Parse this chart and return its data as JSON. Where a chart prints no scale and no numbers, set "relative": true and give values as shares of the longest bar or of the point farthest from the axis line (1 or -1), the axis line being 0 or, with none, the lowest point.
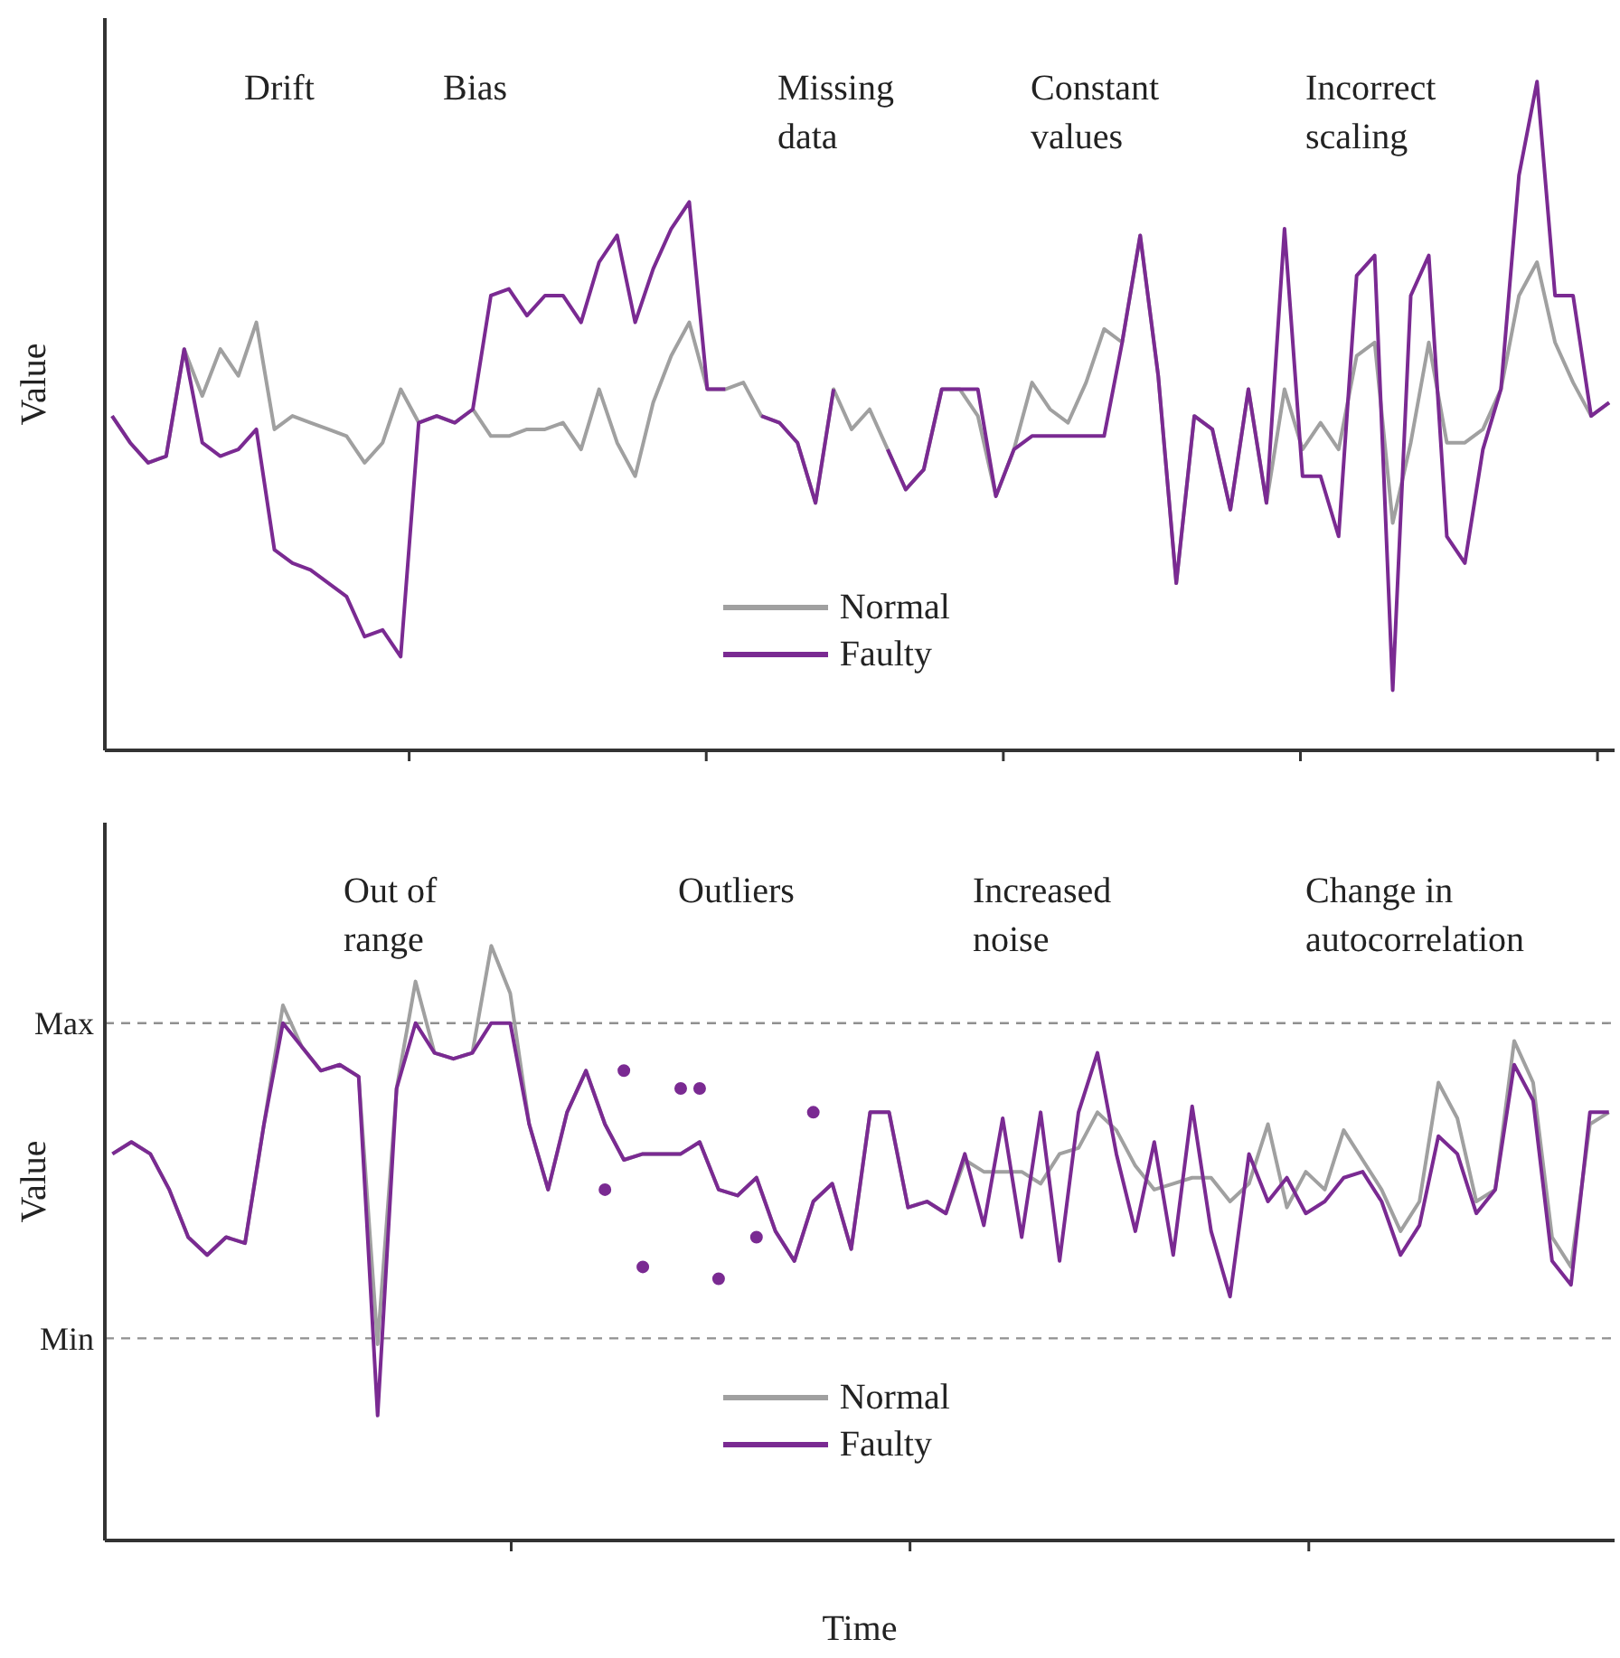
{
  "chart_data": [
    {
      "type": "line",
      "relative": true,
      "ylabel": "Value",
      "legend": "bottom",
      "categories": [
        null,
        null,
        null,
        null,
        null,
        null,
        null,
        null,
        null,
        null,
        null,
        null,
        null,
        null,
        null,
        null,
        null,
        null,
        null,
        null,
        null,
        null,
        null,
        null,
        null,
        null,
        null,
        null,
        null,
        null,
        null,
        null,
        null,
        null,
        null,
        null,
        null,
        null,
        null,
        null,
        null,
        null,
        null,
        null,
        null,
        null,
        null,
        null,
        null,
        null,
        null,
        null,
        null,
        null,
        null,
        null,
        null,
        null,
        null,
        null,
        null,
        null,
        null,
        null,
        null,
        null,
        null,
        null,
        null,
        null,
        null,
        null,
        null,
        null,
        null,
        null,
        null,
        null,
        null,
        null,
        null,
        null,
        null,
        null
      ],
      "annotations": [
        "Drift",
        "Bias",
        "Missing data",
        "Constant values",
        "Incorrect scaling"
      ],
      "series": [
        {
          "name": "Normal",
          "color": "#a0a0a0",
          "values": [
            0.5,
            0.46,
            0.43,
            0.44,
            0.6,
            0.53,
            0.6,
            0.56,
            0.64,
            0.48,
            0.5,
            0.49,
            0.48,
            0.47,
            0.43,
            0.46,
            0.54,
            0.49,
            0.5,
            0.49,
            0.51,
            0.47,
            0.47,
            0.48,
            0.48,
            0.49,
            0.45,
            0.54,
            0.46,
            0.41,
            0.52,
            0.59,
            0.64,
            0.54,
            0.54,
            0.55,
            0.5,
            0.49,
            0.46,
            0.37,
            0.54,
            0.48,
            0.51,
            0.45,
            0.39,
            0.42,
            0.54,
            0.54,
            0.5,
            0.38,
            0.45,
            0.55,
            0.51,
            0.49,
            0.55,
            0.63,
            0.61,
            0.77,
            0.56,
            0.25,
            0.5,
            0.48,
            0.36,
            0.54,
            0.37,
            0.54,
            0.45,
            0.49,
            0.45,
            0.59,
            0.61,
            0.34,
            0.46,
            0.61,
            0.46,
            0.46,
            0.48,
            0.54,
            0.68,
            0.73,
            0.61,
            0.55,
            0.5,
            0.52
          ]
        },
        {
          "name": "Faulty",
          "color": "#7a2a92",
          "values": [
            0.5,
            0.46,
            0.43,
            0.44,
            0.6,
            0.46,
            0.44,
            0.45,
            0.48,
            0.3,
            0.28,
            0.27,
            0.25,
            0.23,
            0.17,
            0.18,
            0.14,
            0.49,
            0.5,
            0.49,
            0.51,
            0.68,
            0.69,
            0.65,
            0.68,
            0.68,
            0.64,
            0.73,
            0.77,
            0.64,
            0.72,
            0.78,
            0.82,
            0.54,
            0.54,
            null,
            0.5,
            0.49,
            0.46,
            0.37,
            0.54,
            null,
            null,
            0.45,
            0.39,
            0.42,
            0.54,
            0.54,
            0.54,
            0.38,
            0.45,
            0.47,
            0.47,
            0.47,
            0.47,
            0.47,
            0.61,
            0.77,
            0.56,
            0.25,
            0.5,
            0.48,
            0.36,
            0.54,
            0.37,
            0.78,
            0.41,
            0.41,
            0.32,
            0.71,
            0.74,
            0.09,
            0.68,
            0.74,
            0.32,
            0.28,
            0.45,
            0.54,
            0.86,
            1.0,
            0.68,
            0.68,
            0.5,
            0.52
          ]
        }
      ]
    },
    {
      "type": "line",
      "relative": true,
      "ylabel": "Value",
      "xlabel": "Time",
      "legend": "bottom",
      "categories": [
        null,
        null,
        null,
        null,
        null,
        null,
        null,
        null,
        null,
        null,
        null,
        null,
        null,
        null,
        null,
        null,
        null,
        null,
        null,
        null,
        null,
        null,
        null,
        null,
        null,
        null,
        null,
        null,
        null,
        null,
        null,
        null,
        null,
        null,
        null,
        null,
        null,
        null,
        null,
        null,
        null,
        null,
        null,
        null,
        null,
        null,
        null,
        null,
        null,
        null,
        null,
        null,
        null,
        null,
        null,
        null,
        null,
        null,
        null,
        null,
        null,
        null,
        null,
        null,
        null,
        null,
        null,
        null,
        null,
        null,
        null,
        null,
        null,
        null,
        null,
        null,
        null,
        null,
        null,
        null
      ],
      "annotations": [
        "Out of range",
        "Outliers",
        "Increased noise",
        "Change in autocorrelation"
      ],
      "ref_lines": [
        {
          "axis": "y",
          "value": 0.87,
          "label": "Max",
          "color": "#909090",
          "line_style": "dashed"
        },
        {
          "axis": "y",
          "value": 0.34,
          "label": "Min",
          "color": "#909090",
          "line_style": "dashed"
        }
      ],
      "series": [
        {
          "name": "Normal",
          "color": "#a0a0a0",
          "values": [
            0.65,
            0.67,
            0.65,
            0.59,
            0.51,
            0.48,
            0.51,
            0.5,
            0.7,
            0.9,
            0.83,
            0.79,
            0.8,
            0.78,
            0.33,
            0.76,
            0.94,
            0.82,
            0.81,
            0.82,
            1.0,
            0.92,
            0.7,
            0.59,
            0.72,
            0.79,
            0.7,
            0.64,
            0.65,
            0.65,
            0.65,
            0.67,
            0.59,
            0.58,
            0.61,
            0.52,
            0.47,
            0.57,
            0.6,
            0.49,
            0.72,
            0.72,
            0.56,
            0.57,
            0.55,
            0.64,
            0.62,
            0.62,
            0.62,
            0.6,
            0.65,
            0.66,
            0.72,
            0.69,
            0.63,
            0.59,
            0.6,
            0.61,
            0.61,
            0.57,
            0.6,
            0.7,
            0.56,
            0.62,
            0.59,
            0.69,
            0.64,
            0.59,
            0.52,
            0.57,
            0.77,
            0.71,
            0.57,
            0.59,
            0.84,
            0.77,
            0.51,
            0.46,
            0.7,
            0.72
          ]
        },
        {
          "name": "Faulty",
          "color": "#7a2a92",
          "values": [
            0.65,
            0.67,
            0.65,
            0.59,
            0.51,
            0.48,
            0.51,
            0.5,
            0.7,
            0.87,
            0.83,
            0.79,
            0.8,
            0.78,
            0.21,
            0.76,
            0.87,
            0.82,
            0.81,
            0.82,
            0.87,
            0.87,
            0.7,
            0.59,
            0.72,
            0.79,
            0.7,
            0.64,
            0.65,
            0.65,
            0.65,
            0.67,
            0.59,
            0.58,
            0.61,
            0.52,
            0.47,
            0.57,
            0.6,
            0.49,
            0.72,
            0.72,
            0.56,
            0.57,
            0.55,
            0.65,
            0.53,
            0.71,
            0.51,
            0.72,
            0.47,
            0.72,
            0.82,
            0.65,
            0.52,
            0.67,
            0.48,
            0.73,
            0.52,
            0.41,
            0.65,
            0.57,
            0.61,
            0.55,
            0.57,
            0.61,
            0.62,
            0.57,
            0.48,
            0.53,
            0.68,
            0.65,
            0.55,
            0.59,
            0.8,
            0.74,
            0.47,
            0.43,
            0.72,
            0.72
          ]
        },
        {
          "color": "#7a2a92",
          "marker": "circle",
          "values": [
            null,
            null,
            null,
            null,
            null,
            null,
            null,
            null,
            null,
            null,
            null,
            null,
            null,
            null,
            null,
            null,
            null,
            null,
            null,
            null,
            null,
            null,
            null,
            null,
            null,
            null,
            null,
            0.79,
            null,
            null,
            0.76,
            null,
            0.44,
            null,
            null,
            null,
            null,
            null,
            null,
            null,
            null,
            null,
            null,
            null,
            null,
            null,
            null,
            null,
            null,
            null,
            null,
            null,
            null,
            null,
            null,
            null,
            null,
            null,
            null,
            null,
            null,
            null,
            null,
            null,
            null,
            null,
            null,
            null,
            null,
            null,
            null,
            null,
            null,
            null,
            null,
            null,
            null,
            null,
            null,
            null
          ]
        },
        {
          "color": "#7a2a92",
          "marker": "circle",
          "values": [
            null,
            null,
            null,
            null,
            null,
            null,
            null,
            null,
            null,
            null,
            null,
            null,
            null,
            null,
            null,
            null,
            null,
            null,
            null,
            null,
            null,
            null,
            null,
            null,
            null,
            null,
            0.59,
            null,
            0.46,
            null,
            null,
            0.76,
            null,
            null,
            0.51,
            null,
            null,
            0.72,
            null,
            null,
            null,
            null,
            null,
            null,
            null,
            null,
            null,
            null,
            null,
            null,
            null,
            null,
            null,
            null,
            null,
            null,
            null,
            null,
            null,
            null,
            null,
            null,
            null,
            null,
            null,
            null,
            null,
            null,
            null,
            null,
            null,
            null,
            null,
            null,
            null,
            null,
            null,
            null,
            null,
            null
          ]
        }
      ]
    }
  ]
}
